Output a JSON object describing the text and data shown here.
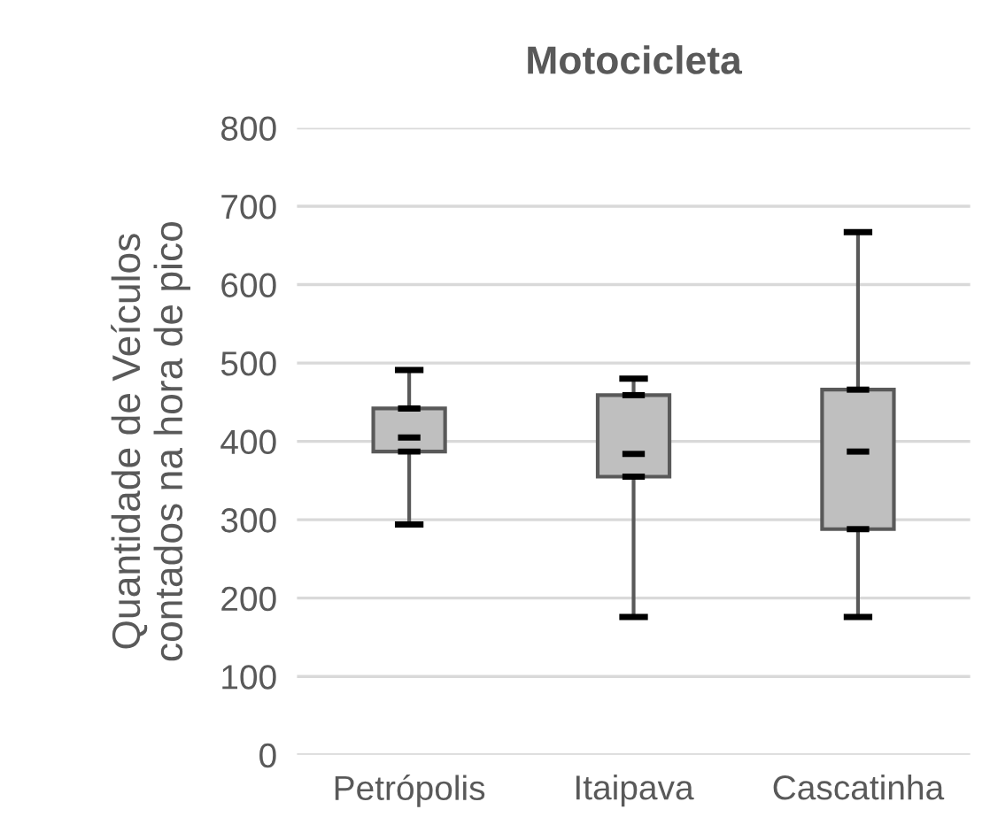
{
  "chart_data": {
    "type": "box",
    "title": "Motocicleta",
    "ylabel": "Quantidade de Veículos\ncontados na hora de pico",
    "categories": [
      "Petrópolis",
      "Itaipava",
      "Cascatinha"
    ],
    "boxes": [
      {
        "low": 294,
        "q1": 387,
        "median": 405,
        "q3": 442,
        "high": 491
      },
      {
        "low": 176,
        "q1": 355,
        "median": 384,
        "q3": 459,
        "high": 480
      },
      {
        "low": 176,
        "q1": 288,
        "median": 387,
        "q3": 466,
        "high": 667
      }
    ],
    "color": "#bfbfbf",
    "ylim": [
      0,
      800
    ],
    "yticks": [
      0,
      100,
      200,
      300,
      400,
      500,
      600,
      700,
      800
    ],
    "grid": "y",
    "legend": false
  }
}
